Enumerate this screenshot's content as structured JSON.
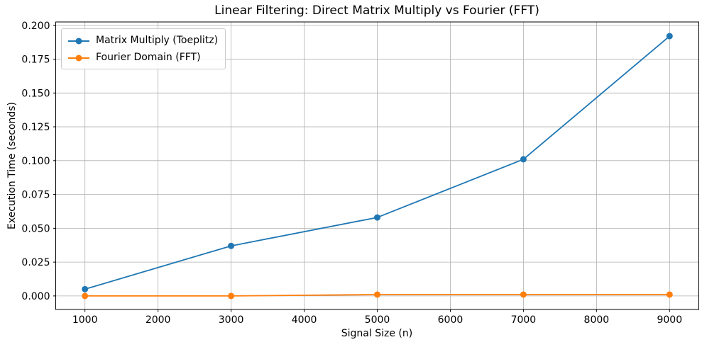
{
  "figure": {
    "background": "#ffffff",
    "text_color": "#000000"
  },
  "chart_data": {
    "type": "line",
    "title": "Linear Filtering: Direct Matrix Multiply vs Fourier (FFT)",
    "xlabel": "Signal Size (n)",
    "ylabel": "Execution Time (seconds)",
    "x": [
      1000,
      3000,
      5000,
      7000,
      9000
    ],
    "series": [
      {
        "name": "Matrix Multiply (Toeplitz)",
        "color": "#1f77b4",
        "marker": "circle",
        "values": [
          0.005,
          0.037,
          0.058,
          0.101,
          0.192
        ]
      },
      {
        "name": "Fourier Domain (FFT)",
        "color": "#ff7f0e",
        "marker": "circle",
        "values": [
          0.0,
          0.0,
          0.001,
          0.001,
          0.001
        ]
      }
    ],
    "xlim": [
      600,
      9400
    ],
    "ylim": [
      -0.01,
      0.2025
    ],
    "xticks": [
      1000,
      2000,
      3000,
      4000,
      5000,
      6000,
      7000,
      8000,
      9000
    ],
    "yticks": [
      0.0,
      0.025,
      0.05,
      0.075,
      0.1,
      0.125,
      0.15,
      0.175,
      0.2
    ],
    "ytick_decimals": 3,
    "grid": true,
    "grid_color": "#b0b0b0",
    "spine_color": "#000000",
    "legend_position": "upper left"
  }
}
